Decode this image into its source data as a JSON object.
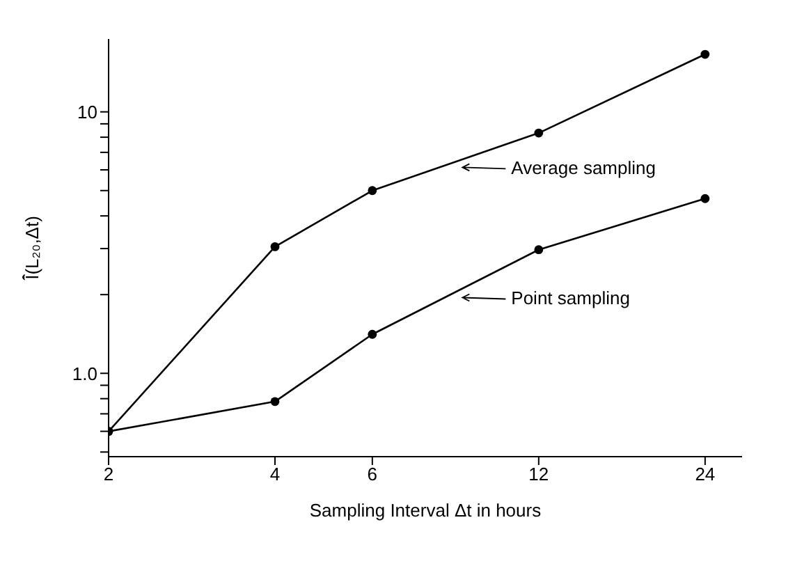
{
  "chart_data": {
    "type": "line",
    "xlabel": "Sampling Interval Δt in hours",
    "ylabel": "Ī̂(L₂₀,Δt)",
    "x": [
      2,
      4,
      6,
      12,
      24
    ],
    "series": [
      {
        "name": "Average sampling",
        "color": "#000000",
        "values": [
          0.6,
          3.05,
          5.0,
          8.3,
          16.6
        ]
      },
      {
        "name": "Point sampling",
        "color": "#000000",
        "values": [
          0.6,
          0.78,
          1.41,
          2.97,
          4.66
        ]
      }
    ],
    "log": "xy",
    "xlim": [
      2,
      28
    ],
    "xticks": [
      2,
      4,
      6,
      12,
      24
    ],
    "ylim": [
      0.48,
      19
    ],
    "yticks": [
      {
        "value": 0.5,
        "label": null
      },
      {
        "value": 0.6,
        "label": null
      },
      {
        "value": 0.7,
        "label": null
      },
      {
        "value": 0.8,
        "label": null
      },
      {
        "value": 0.9,
        "label": null
      },
      {
        "value": 1,
        "label": "1.0"
      },
      {
        "value": 2,
        "label": null
      },
      {
        "value": 3,
        "label": null
      },
      {
        "value": 4,
        "label": null
      },
      {
        "value": 5,
        "label": null
      },
      {
        "value": 6,
        "label": null
      },
      {
        "value": 7,
        "label": null
      },
      {
        "value": 8,
        "label": null
      },
      {
        "value": 9,
        "label": null
      },
      {
        "value": 10,
        "label": "10"
      }
    ],
    "grid": false,
    "legend": "right",
    "marker": "circle",
    "line_style": "solid"
  }
}
